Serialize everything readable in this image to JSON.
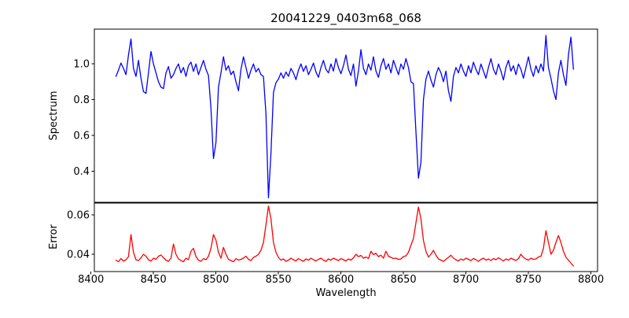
{
  "window": {
    "title": "20041229_0403m68_068"
  },
  "colors": {
    "spectrum_line": "#0000ff",
    "error_line": "#ff0000",
    "axis": "#000000",
    "background": "#ffffff",
    "text": "#000000"
  },
  "chart_data": {
    "type": "line",
    "title": "20041229_0403m68_068",
    "xlabel": "Wavelength",
    "grid": false,
    "legend": "none",
    "xlim": [
      8402.7,
      8805.3
    ],
    "x_ticks": [
      8400,
      8450,
      8500,
      8550,
      8600,
      8650,
      8700,
      8750,
      8800
    ],
    "x_tick_labels": [
      "8400",
      "8450",
      "8500",
      "8550",
      "8600",
      "8650",
      "8700",
      "8750",
      "8800"
    ],
    "panels": [
      {
        "name": "spectrum",
        "ylabel": "Spectrum",
        "line_color": "#0000ff",
        "ylim": [
          0.225,
          1.195
        ],
        "y_ticks": [
          0.4,
          0.6,
          0.8,
          1.0
        ],
        "y_tick_labels": [
          "0.4",
          "0.6",
          "0.8",
          "1.0"
        ],
        "notable_features": "absorption lines near 8498 (depth ~0.47), 8542 (depth ~0.25), 8662 (depth ~0.36); noisy continuum ~0.95-1.0"
      },
      {
        "name": "error",
        "ylabel": "Error",
        "line_color": "#ff0000",
        "ylim": [
          0.0312,
          0.066
        ],
        "y_ticks": [
          0.04,
          0.06
        ],
        "y_tick_labels": [
          "0.04",
          "0.06"
        ],
        "notable_features": "baseline ~0.037 with peaks ~0.065 at 8542 and 8662, ~0.05 at 8432, 8498, 8764-8774"
      }
    ],
    "x": [
      8420,
      8422,
      8424,
      8426,
      8428,
      8430,
      8432,
      8434,
      8436,
      8438,
      8440,
      8442,
      8444,
      8446,
      8448,
      8450,
      8452,
      8454,
      8456,
      8458,
      8460,
      8462,
      8464,
      8466,
      8468,
      8470,
      8472,
      8474,
      8476,
      8478,
      8480,
      8482,
      8484,
      8486,
      8488,
      8490,
      8492,
      8494,
      8496,
      8498,
      8500,
      8502,
      8504,
      8506,
      8508,
      8510,
      8512,
      8514,
      8516,
      8518,
      8520,
      8522,
      8524,
      8526,
      8528,
      8530,
      8532,
      8534,
      8536,
      8538,
      8540,
      8542,
      8544,
      8546,
      8548,
      8550,
      8552,
      8554,
      8556,
      8558,
      8560,
      8562,
      8564,
      8566,
      8568,
      8570,
      8572,
      8574,
      8576,
      8578,
      8580,
      8582,
      8584,
      8586,
      8588,
      8590,
      8592,
      8594,
      8596,
      8598,
      8600,
      8602,
      8604,
      8606,
      8608,
      8610,
      8612,
      8614,
      8616,
      8618,
      8620,
      8622,
      8624,
      8626,
      8628,
      8630,
      8632,
      8634,
      8636,
      8638,
      8640,
      8642,
      8644,
      8646,
      8648,
      8650,
      8652,
      8654,
      8656,
      8658,
      8660,
      8662,
      8664,
      8666,
      8668,
      8670,
      8672,
      8674,
      8676,
      8678,
      8680,
      8682,
      8684,
      8686,
      8688,
      8690,
      8692,
      8694,
      8696,
      8698,
      8700,
      8702,
      8704,
      8706,
      8708,
      8710,
      8712,
      8714,
      8716,
      8718,
      8720,
      8722,
      8724,
      8726,
      8728,
      8730,
      8732,
      8734,
      8736,
      8738,
      8740,
      8742,
      8744,
      8746,
      8748,
      8750,
      8752,
      8754,
      8756,
      8758,
      8760,
      8762,
      8764,
      8766,
      8768,
      8770,
      8772,
      8774,
      8776,
      8778,
      8780,
      8782,
      8784,
      8786
    ],
    "series": [
      {
        "name": "Spectrum",
        "values": [
          0.93,
          0.965,
          1.005,
          0.975,
          0.94,
          1.05,
          1.14,
          0.975,
          0.93,
          1.02,
          0.92,
          0.845,
          0.835,
          0.95,
          1.07,
          1.0,
          0.95,
          0.9,
          0.87,
          0.862,
          0.95,
          0.985,
          0.92,
          0.94,
          0.975,
          1.0,
          0.95,
          0.98,
          0.93,
          0.99,
          1.01,
          0.958,
          1.0,
          0.94,
          0.98,
          1.02,
          0.97,
          0.935,
          0.75,
          0.47,
          0.56,
          0.87,
          0.95,
          1.04,
          0.965,
          0.99,
          0.94,
          0.96,
          0.9,
          0.85,
          0.97,
          1.04,
          0.98,
          0.92,
          0.965,
          1.0,
          0.955,
          0.975,
          0.94,
          0.93,
          0.72,
          0.25,
          0.5,
          0.84,
          0.895,
          0.915,
          0.95,
          0.92,
          0.955,
          0.93,
          0.975,
          0.95,
          0.912,
          0.965,
          1.0,
          0.958,
          0.99,
          0.94,
          0.97,
          1.005,
          0.955,
          0.925,
          0.98,
          1.02,
          0.97,
          0.95,
          1.0,
          0.96,
          1.03,
          0.98,
          0.945,
          0.99,
          1.05,
          0.97,
          0.935,
          1.0,
          0.875,
          0.96,
          1.08,
          0.975,
          0.94,
          1.0,
          0.965,
          1.04,
          0.96,
          0.925,
          0.99,
          1.03,
          0.97,
          1.0,
          0.95,
          1.02,
          0.98,
          0.94,
          1.0,
          0.97,
          1.03,
          0.98,
          0.9,
          0.89,
          0.62,
          0.36,
          0.45,
          0.8,
          0.915,
          0.96,
          0.91,
          0.87,
          0.94,
          0.98,
          0.95,
          0.9,
          0.96,
          0.85,
          0.79,
          0.93,
          0.98,
          0.95,
          1.0,
          0.96,
          0.93,
          0.99,
          0.95,
          1.01,
          0.97,
          0.94,
          1.0,
          0.96,
          0.92,
          0.98,
          1.03,
          0.97,
          0.94,
          1.0,
          0.96,
          0.91,
          0.98,
          1.02,
          0.96,
          0.99,
          0.94,
          1.0,
          0.97,
          0.92,
          0.98,
          1.04,
          0.97,
          0.93,
          0.99,
          0.95,
          1.0,
          0.96,
          1.16,
          0.98,
          0.92,
          0.85,
          0.8,
          0.95,
          1.02,
          0.94,
          0.88,
          1.05,
          1.15,
          0.97
        ]
      },
      {
        "name": "Error",
        "values": [
          0.037,
          0.0362,
          0.0378,
          0.0365,
          0.0372,
          0.0388,
          0.05,
          0.041,
          0.0372,
          0.0368,
          0.0382,
          0.04,
          0.039,
          0.0372,
          0.0365,
          0.038,
          0.0374,
          0.039,
          0.0396,
          0.0382,
          0.037,
          0.0364,
          0.038,
          0.0452,
          0.04,
          0.0376,
          0.0368,
          0.0362,
          0.038,
          0.0372,
          0.0415,
          0.043,
          0.0388,
          0.037,
          0.0364,
          0.0378,
          0.0372,
          0.039,
          0.043,
          0.05,
          0.0472,
          0.041,
          0.038,
          0.0435,
          0.04,
          0.0374,
          0.0368,
          0.0362,
          0.0378,
          0.037,
          0.0374,
          0.038,
          0.039,
          0.0374,
          0.0368,
          0.0384,
          0.039,
          0.04,
          0.042,
          0.046,
          0.055,
          0.0645,
          0.058,
          0.046,
          0.041,
          0.0384,
          0.037,
          0.0376,
          0.0364,
          0.037,
          0.038,
          0.0372,
          0.0366,
          0.0378,
          0.037,
          0.0364,
          0.0376,
          0.037,
          0.038,
          0.0372,
          0.0366,
          0.0374,
          0.038,
          0.037,
          0.0364,
          0.0376,
          0.037,
          0.038,
          0.0374,
          0.0368,
          0.0378,
          0.0372,
          0.0366,
          0.0376,
          0.037,
          0.0382,
          0.04,
          0.0388,
          0.0394,
          0.038,
          0.0386,
          0.0378,
          0.0415,
          0.0398,
          0.0405,
          0.0388,
          0.0395,
          0.038,
          0.0415,
          0.039,
          0.0384,
          0.0378,
          0.038,
          0.0374,
          0.0376,
          0.0388,
          0.0392,
          0.041,
          0.0445,
          0.048,
          0.056,
          0.064,
          0.058,
          0.047,
          0.0415,
          0.0386,
          0.04,
          0.042,
          0.0395,
          0.0376,
          0.037,
          0.0364,
          0.0374,
          0.0384,
          0.0395,
          0.038,
          0.0372,
          0.0366,
          0.0376,
          0.037,
          0.038,
          0.0374,
          0.0368,
          0.0378,
          0.0372,
          0.0364,
          0.0374,
          0.038,
          0.037,
          0.0376,
          0.0368,
          0.0378,
          0.0372,
          0.0382,
          0.0374,
          0.0366,
          0.0376,
          0.037,
          0.038,
          0.0374,
          0.0368,
          0.0378,
          0.04,
          0.0384,
          0.0376,
          0.037,
          0.038,
          0.0374,
          0.0376,
          0.0386,
          0.039,
          0.043,
          0.052,
          0.046,
          0.04,
          0.042,
          0.046,
          0.0495,
          0.046,
          0.0415,
          0.0385,
          0.037,
          0.0355,
          0.034
        ]
      }
    ]
  }
}
